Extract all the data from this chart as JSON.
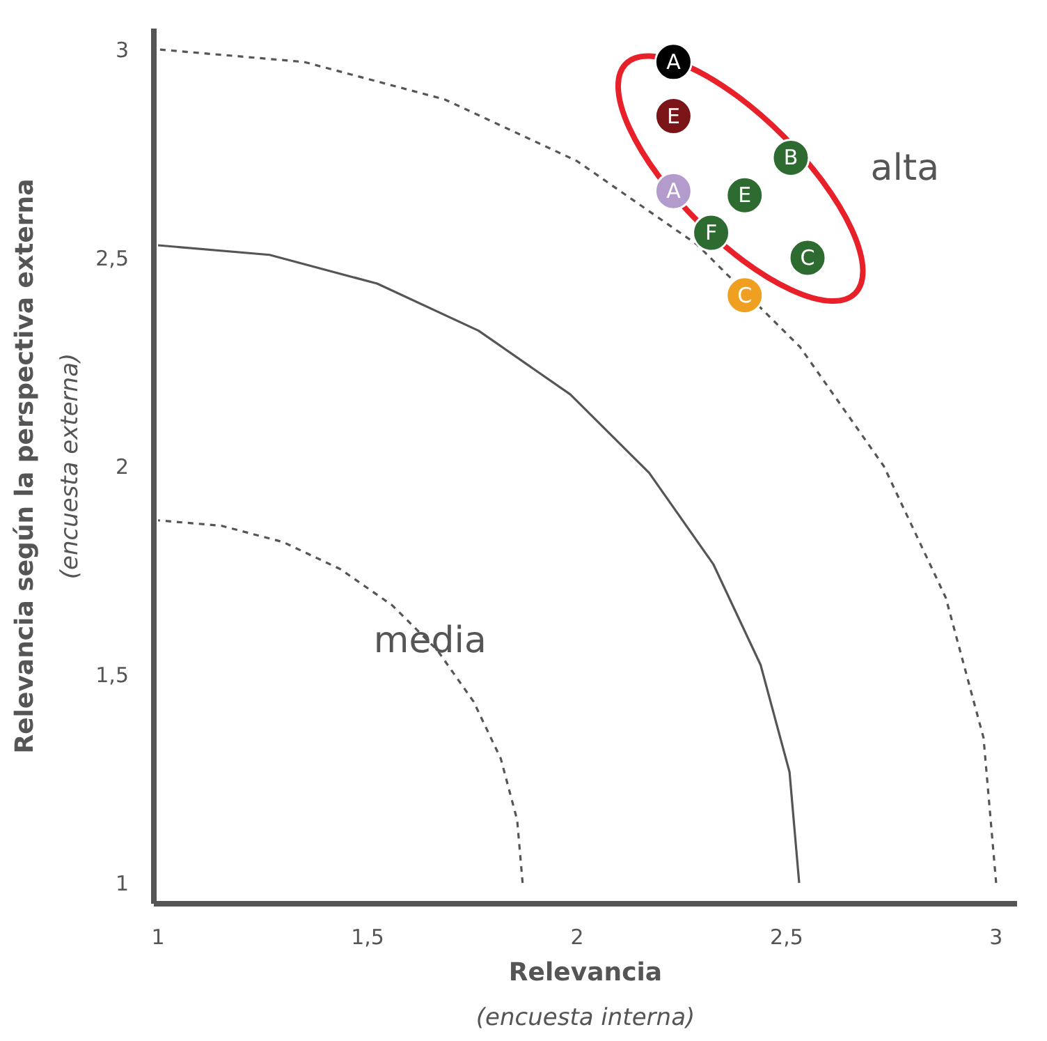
{
  "chart_data": {
    "type": "scatter",
    "xlabel": "Relevancia",
    "ylabel": "Relevancia según la perspectiva externa",
    "annotations": [
      "(encuesta interna)",
      "(encuesta externa)",
      "media",
      "alta"
    ],
    "xlim": [
      0.99,
      3.05
    ],
    "ylim": [
      0.95,
      3.05
    ],
    "xticks": [
      1,
      {
        "value": 1.5,
        "label": "1,5"
      },
      2,
      {
        "value": 2.5,
        "label": "2,5"
      },
      3
    ],
    "yticks": [
      1,
      {
        "value": 1.5,
        "label": "1,5"
      },
      2,
      {
        "value": 2.5,
        "label": "2,5"
      },
      3
    ],
    "grid": false,
    "series": [
      {
        "type": "line",
        "color": "#555555",
        "line_style": "dashed",
        "x": [
          1.87,
          1.857,
          1.818,
          1.753,
          1.666,
          1.559,
          1.435,
          1.298,
          1.151,
          1.0
        ],
        "values": [
          1.0,
          1.151,
          1.298,
          1.435,
          1.559,
          1.666,
          1.753,
          1.818,
          1.857,
          1.87
        ]
      },
      {
        "type": "line",
        "color": "#555555",
        "line_style": "solid",
        "x": [
          2.53,
          2.507,
          2.438,
          2.325,
          2.172,
          1.984,
          1.765,
          1.523,
          1.266,
          1.0
        ],
        "values": [
          1.0,
          1.266,
          1.523,
          1.765,
          1.984,
          2.172,
          2.325,
          2.438,
          2.507,
          2.53
        ]
      },
      {
        "type": "line",
        "color": "#555555",
        "line_style": "dashed",
        "x": [
          3.0,
          2.97,
          2.88,
          2.732,
          2.532,
          2.286,
          2.0,
          1.684,
          1.348,
          1.0
        ],
        "values": [
          1.0,
          1.348,
          1.684,
          2.0,
          2.286,
          2.532,
          2.732,
          2.88,
          2.97,
          3.0
        ]
      },
      {
        "marker": "circle",
        "x": [
          2.23,
          2.23,
          2.23,
          2.51,
          2.4,
          2.32,
          2.55,
          2.4
        ],
        "values": [
          2.97,
          2.84,
          2.66,
          2.74,
          2.65,
          2.56,
          2.5,
          2.41
        ],
        "colors": [
          "#000000",
          "#7b1416",
          "#b39ccb",
          "#2e6b30",
          "#2e6b30",
          "#2e6b30",
          "#2e6b30",
          "#f0a020"
        ],
        "value_labels": [
          "A",
          "E",
          "A",
          "B",
          "E",
          "F",
          "C",
          "C"
        ]
      }
    ]
  }
}
